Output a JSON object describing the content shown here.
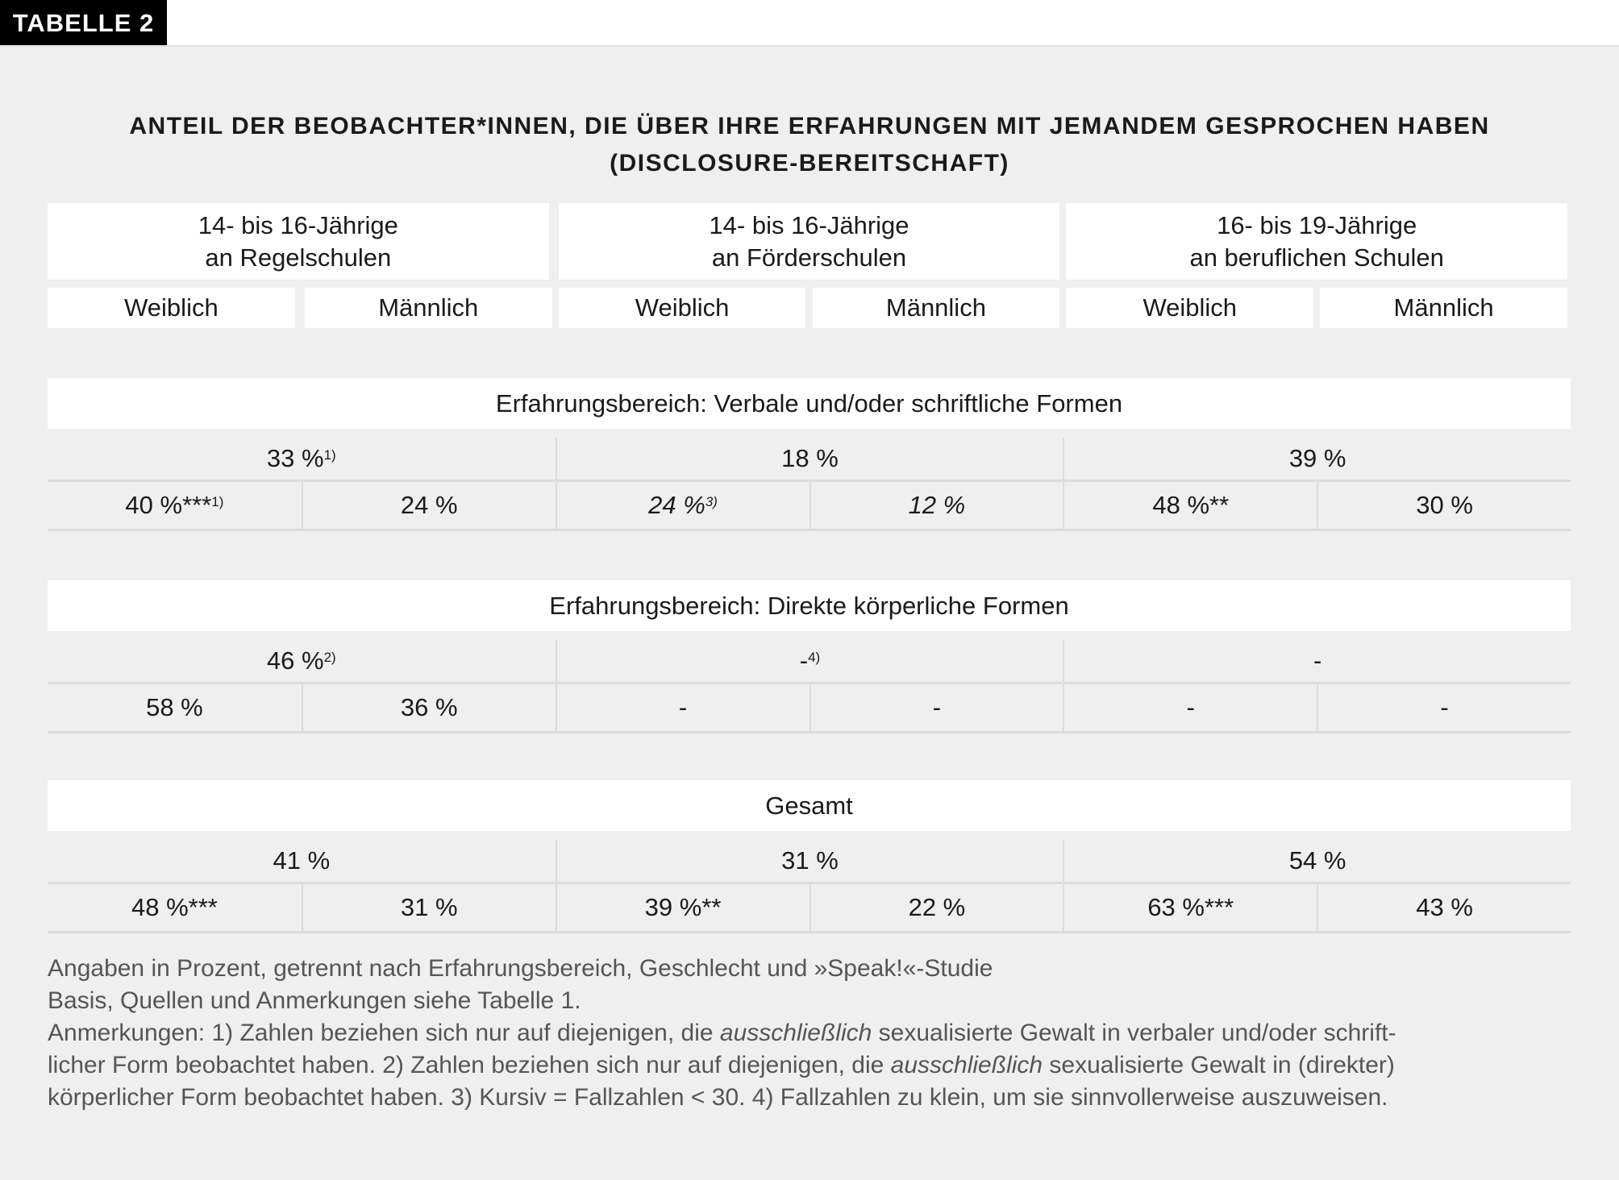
{
  "badge": "TABELLE 2",
  "title": {
    "line1": "ANTEIL DER BEOBACHTER*INNEN, DIE ÜBER IHRE ERFAHRUNGEN MIT JEMANDEM GESPROCHEN HABEN",
    "line2": "(DISCLOSURE-BEREITSCHAFT)"
  },
  "groups": [
    {
      "line1": "14- bis 16-Jährige",
      "line2": "an Regelschulen"
    },
    {
      "line1": "14- bis 16-Jährige",
      "line2": "an Förderschulen"
    },
    {
      "line1": "16- bis 19-Jährige",
      "line2": "an beruflichen Schulen"
    }
  ],
  "genders": [
    "Weiblich",
    "Männlich",
    "Weiblich",
    "Männlich",
    "Weiblich",
    "Männlich"
  ],
  "sections": [
    {
      "title": "Erfahrungsbereich: Verbale und/oder schriftliche Formen",
      "totals": [
        {
          "value": "33 %",
          "note": "1)",
          "italic": false
        },
        {
          "value": "18 %",
          "note": "",
          "italic": false
        },
        {
          "value": "39 %",
          "note": "",
          "italic": false
        }
      ],
      "cells": [
        {
          "value": "40 %***",
          "note": "1)",
          "italic": false
        },
        {
          "value": "24 %",
          "note": "",
          "italic": false
        },
        {
          "value": "24 %",
          "note": "3)",
          "italic": true
        },
        {
          "value": "12 %",
          "note": "",
          "italic": true
        },
        {
          "value": "48 %**",
          "note": "",
          "italic": false
        },
        {
          "value": "30 %",
          "note": "",
          "italic": false
        }
      ]
    },
    {
      "title": "Erfahrungsbereich: Direkte körperliche Formen",
      "totals": [
        {
          "value": "46 %",
          "note": "2)",
          "italic": false
        },
        {
          "value": "-",
          "note": "4)",
          "italic": false
        },
        {
          "value": "-",
          "note": "",
          "italic": false
        }
      ],
      "cells": [
        {
          "value": "58 %",
          "note": "",
          "italic": false
        },
        {
          "value": "36 %",
          "note": "",
          "italic": false
        },
        {
          "value": "-",
          "note": "",
          "italic": false
        },
        {
          "value": "-",
          "note": "",
          "italic": false
        },
        {
          "value": "-",
          "note": "",
          "italic": false
        },
        {
          "value": "-",
          "note": "",
          "italic": false
        }
      ]
    },
    {
      "title": "Gesamt",
      "totals": [
        {
          "value": "41 %",
          "note": "",
          "italic": false
        },
        {
          "value": "31 %",
          "note": "",
          "italic": false
        },
        {
          "value": "54 %",
          "note": "",
          "italic": false
        }
      ],
      "cells": [
        {
          "value": "48 %***",
          "note": "",
          "italic": false
        },
        {
          "value": "31 %",
          "note": "",
          "italic": false
        },
        {
          "value": "39 %**",
          "note": "",
          "italic": false
        },
        {
          "value": "22 %",
          "note": "",
          "italic": false
        },
        {
          "value": "63 %***",
          "note": "",
          "italic": false
        },
        {
          "value": "43 %",
          "note": "",
          "italic": false
        }
      ]
    }
  ],
  "notes": [
    [
      {
        "text": "Angaben in Prozent, getrennt nach Erfahrungsbereich, Geschlecht und »Speak!«-Studie",
        "italic": false
      }
    ],
    [
      {
        "text": "Basis, Quellen und Anmerkungen siehe Tabelle 1.",
        "italic": false
      }
    ],
    [
      {
        "text": "Anmerkungen: 1) Zahlen beziehen sich nur auf diejenigen, die ",
        "italic": false
      },
      {
        "text": "ausschließlich",
        "italic": true
      },
      {
        "text": " sexualisierte Gewalt in verbaler und/oder schrift-",
        "italic": false
      }
    ],
    [
      {
        "text": "licher Form beobachtet haben. 2) Zahlen beziehen sich nur auf diejenigen, die ",
        "italic": false
      },
      {
        "text": "ausschließlich",
        "italic": true
      },
      {
        "text": " sexualisierte Gewalt in (direkter)",
        "italic": false
      }
    ],
    [
      {
        "text": "körperlicher Form beobachtet haben. 3) Kursiv = Fallzahlen < 30. 4) Fallzahlen zu klein, um sie sinnvollerweise auszuweisen.",
        "italic": false
      }
    ]
  ]
}
